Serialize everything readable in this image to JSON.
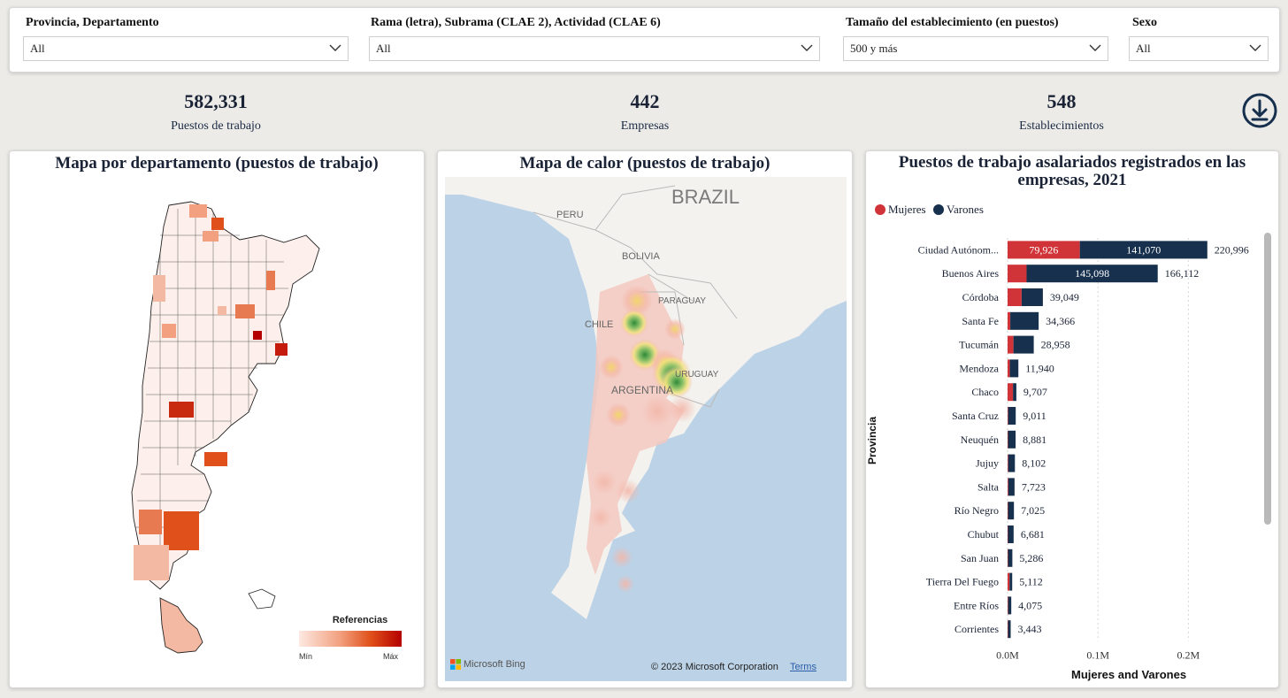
{
  "filters": [
    {
      "label": "Provincia, Departamento",
      "value": "All"
    },
    {
      "label": "Rama (letra), Subrama (CLAE 2), Actividad (CLAE 6)",
      "value": "All"
    },
    {
      "label": "Tamaño del establecimiento (en puestos)",
      "value": "500 y más"
    },
    {
      "label": "Sexo",
      "value": "All"
    }
  ],
  "kpis": [
    {
      "value": "582,331",
      "label": "Puestos de trabajo"
    },
    {
      "value": "442",
      "label": "Empresas"
    },
    {
      "value": "548",
      "label": "Establecimientos"
    }
  ],
  "icons": {
    "download": "download-circle-icon",
    "chevron": "chevron-down-icon"
  },
  "map_dept": {
    "title": "Mapa por departamento (puestos de trabajo)",
    "legend_title": "Referencias",
    "legend_min": "Mín",
    "legend_max": "Máx"
  },
  "heat_map": {
    "title": "Mapa de calor (puestos de trabajo)",
    "labels": [
      "BRAZIL",
      "PERU",
      "BOLIVIA",
      "PARAGUAY",
      "CHILE",
      "URUGUAY",
      "ARGENTINA"
    ],
    "credit_bing": "Microsoft Bing",
    "credit_copyright": "© 2023 Microsoft Corporation",
    "credit_terms": "Terms"
  },
  "colors": {
    "mujeres": "#d13438",
    "varones": "#16304d",
    "title": "#1a2336"
  },
  "chart_data": {
    "type": "bar",
    "orientation": "horizontal",
    "stacked": true,
    "title": "Puestos de trabajo asalariados registrados en las empresas, 2021",
    "xlabel": "Mujeres and Varones",
    "ylabel": "Provincia",
    "legend_position": "top-left",
    "xlim": [
      0,
      230000
    ],
    "xticks": [
      "0.0M",
      "0.1M",
      "0.2M"
    ],
    "categories": [
      "Ciudad Autónom...",
      "Buenos Aires",
      "Córdoba",
      "Santa Fe",
      "Tucumán",
      "Mendoza",
      "Chaco",
      "Santa Cruz",
      "Neuquén",
      "Jujuy",
      "Salta",
      "Río Negro",
      "Chubut",
      "San Juan",
      "Tierra Del Fuego",
      "Entre Ríos",
      "Corrientes"
    ],
    "totals_labels": [
      "220,996",
      "166,112",
      "39,049",
      "34,366",
      "28,958",
      "11,940",
      "9,707",
      "9,011",
      "8,881",
      "8,102",
      "7,723",
      "7,025",
      "6,681",
      "5,286",
      "5,112",
      "4,075",
      "3,443"
    ],
    "series": [
      {
        "name": "Mujeres",
        "values": [
          79926,
          21014,
          15500,
          3000,
          6500,
          2500,
          6000,
          600,
          500,
          700,
          800,
          500,
          400,
          500,
          2200,
          600,
          500
        ],
        "labels": [
          "79,926",
          "",
          "",
          "",
          "",
          "",
          "",
          "",
          "",
          "",
          "",
          "",
          "",
          "",
          "",
          "",
          ""
        ]
      },
      {
        "name": "Varones",
        "values": [
          141070,
          145098,
          23549,
          31366,
          22458,
          9440,
          3707,
          8411,
          8381,
          7402,
          6923,
          6525,
          6281,
          4786,
          2912,
          3475,
          2943
        ],
        "labels": [
          "141,070",
          "145,098",
          "",
          "",
          "",
          "",
          "",
          "",
          "",
          "",
          "",
          "",
          "",
          "",
          "",
          "",
          ""
        ]
      }
    ]
  }
}
